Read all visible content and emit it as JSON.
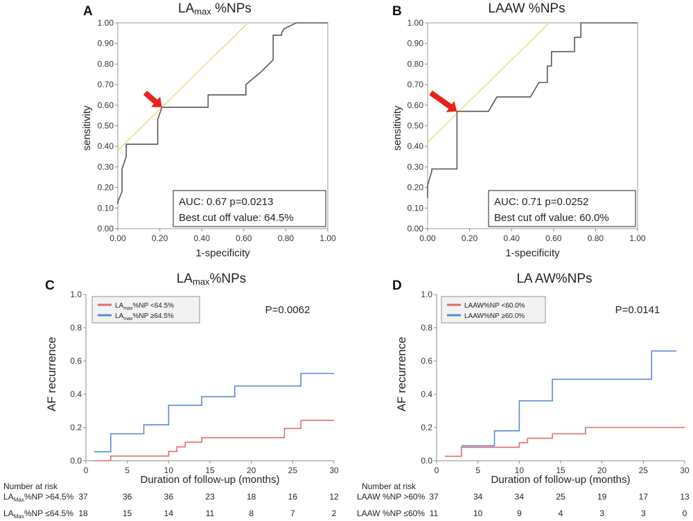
{
  "chart_data": [
    {
      "panel": "A",
      "type": "line",
      "title": "LA",
      "title_sub": "max",
      "title_rest": " %NPs",
      "xlabel": "1-specificity",
      "ylabel": "sensitivity",
      "xlim": [
        0,
        1
      ],
      "ylim": [
        0,
        1
      ],
      "xticks": [
        "0.00",
        "0.20",
        "0.40",
        "0.60",
        "0.80",
        "1.00"
      ],
      "yticks": [
        "0.00",
        "0.10",
        "0.20",
        "0.30",
        "0.40",
        "0.50",
        "0.60",
        "0.70",
        "0.80",
        "0.90",
        "1.00"
      ],
      "roc_curve": {
        "x": [
          0,
          0,
          0.02,
          0.02,
          0.04,
          0.04,
          0.19,
          0.19,
          0.21,
          0.21,
          0.43,
          0.43,
          0.61,
          0.61,
          0.68,
          0.68,
          0.74,
          0.74,
          0.78,
          0.78,
          0.79,
          0.79,
          0.85,
          0.85,
          1.0
        ],
        "y": [
          0.12,
          0.13,
          0.18,
          0.29,
          0.35,
          0.41,
          0.41,
          0.53,
          0.59,
          0.59,
          0.59,
          0.65,
          0.65,
          0.7,
          0.76,
          0.76,
          0.82,
          0.94,
          0.94,
          0.95,
          0.97,
          0.97,
          1.0,
          1.0,
          1.0
        ]
      },
      "reference_line": {
        "x": [
          0,
          0.62
        ],
        "y": [
          0.38,
          1.0
        ]
      },
      "cut_off_point": {
        "x": 0.21,
        "y": 0.59
      },
      "annotation": {
        "auc_text": "AUC: 0.67  p=0.0213",
        "cutoff_text": "Best cut off value:  64.5%"
      }
    },
    {
      "panel": "B",
      "type": "line",
      "title": "LAAW %NPs",
      "title_sub": "",
      "title_rest": "",
      "xlabel": "1-specificity",
      "ylabel": "sensitivity",
      "xlim": [
        0,
        1
      ],
      "ylim": [
        0,
        1
      ],
      "xticks": [
        "0.00",
        "0.20",
        "0.40",
        "0.60",
        "0.80",
        "1.00"
      ],
      "yticks": [
        "0.00",
        "0.10",
        "0.20",
        "0.30",
        "0.40",
        "0.50",
        "0.60",
        "0.70",
        "0.80",
        "0.90",
        "1.00"
      ],
      "roc_curve": {
        "x": [
          0,
          0,
          0.02,
          0.02,
          0.14,
          0.14,
          0.29,
          0.33,
          0.49,
          0.53,
          0.57,
          0.57,
          0.59,
          0.59,
          0.61,
          0.61,
          0.7,
          0.7,
          0.73,
          0.73,
          1.0
        ],
        "y": [
          0.15,
          0.21,
          0.28,
          0.29,
          0.29,
          0.57,
          0.57,
          0.64,
          0.64,
          0.71,
          0.71,
          0.79,
          0.79,
          0.86,
          0.86,
          0.86,
          0.86,
          0.93,
          0.93,
          1.0,
          1.0
        ]
      },
      "reference_line": {
        "x": [
          0,
          0.58
        ],
        "y": [
          0.42,
          1.0
        ]
      },
      "cut_off_point": {
        "x": 0.14,
        "y": 0.57
      },
      "annotation": {
        "auc_text": "AUC: 0.71  p=0.0252",
        "cutoff_text": "Best cut off value:  60.0%"
      }
    },
    {
      "panel": "C",
      "type": "line",
      "title": "LA",
      "title_sub": "max",
      "title_rest": "%NPs",
      "xlabel": "Duration of follow-up  (months)",
      "ylabel": "AF recurrence",
      "xlim": [
        0,
        30
      ],
      "ylim": [
        0,
        1
      ],
      "xticks": [
        "0",
        "5",
        "10",
        "15",
        "20",
        "25",
        "30"
      ],
      "yticks": [
        "0.0",
        "0.2",
        "0.4",
        "0.6",
        "0.8",
        "1.0"
      ],
      "p_value": "P=0.0062",
      "series": [
        {
          "name": "LAmax%NP <64.5%",
          "legend_pre": "LA",
          "legend_sub": "max",
          "legend_post": "%NP <64.5%",
          "color": "#e06b6b",
          "x": [
            1,
            3,
            10,
            11,
            12,
            14,
            24,
            26,
            30
          ],
          "y": [
            0,
            0.028,
            0.056,
            0.083,
            0.111,
            0.139,
            0.194,
            0.243,
            0.243
          ]
        },
        {
          "name": "LAmax%NP ≥64.5%",
          "legend_pre": "LA",
          "legend_sub": "max",
          "legend_post": "%NP ≥64.5%",
          "color": "#5b86d4",
          "x": [
            1,
            3,
            7,
            10,
            14,
            18,
            26,
            30
          ],
          "y": [
            0.054,
            0.162,
            0.216,
            0.333,
            0.385,
            0.449,
            0.525,
            0.525
          ]
        }
      ],
      "risk_table": {
        "header": "Number at risk",
        "rows": [
          {
            "label_pre": "LA",
            "label_sub": "Max",
            "label_post": "%NP >64.5%",
            "values": [
              "37",
              "36",
              "36",
              "23",
              "18",
              "16",
              "12"
            ]
          },
          {
            "label_pre": "LA",
            "label_sub": "Max",
            "label_post": "%NP ≤64.5%",
            "values": [
              "18",
              "15",
              "14",
              "11",
              "8",
              "7",
              "2"
            ]
          }
        ]
      }
    },
    {
      "panel": "D",
      "type": "line",
      "title": "LA AW%NPs",
      "title_sub": "",
      "title_rest": "",
      "xlabel": "Duration of follow-up  (months)",
      "ylabel": "AF recurrence",
      "xlim": [
        0,
        30
      ],
      "ylim": [
        0,
        1
      ],
      "xticks": [
        "0",
        "5",
        "10",
        "15",
        "20",
        "25",
        "30"
      ],
      "yticks": [
        "0.0",
        "0.2",
        "0.4",
        "0.6",
        "0.8",
        "1.0"
      ],
      "p_value": "P=0.0141",
      "series": [
        {
          "name": "LAAW%NP <60.0%",
          "legend_pre": "LAAW%NP <60.0%",
          "legend_sub": "",
          "legend_post": "",
          "color": "#e06b6b",
          "x": [
            1,
            3,
            10,
            11,
            14,
            18,
            30
          ],
          "y": [
            0.027,
            0.081,
            0.108,
            0.135,
            0.162,
            0.2,
            0.2
          ]
        },
        {
          "name": "LAAW%NP ≥60.0%",
          "legend_pre": "LAAW%NP ≥60.0%",
          "legend_sub": "",
          "legend_post": "",
          "color": "#5b86d4",
          "x": [
            3,
            7,
            10,
            14,
            26,
            29
          ],
          "y": [
            0.09,
            0.18,
            0.36,
            0.49,
            0.66,
            0.66
          ]
        }
      ],
      "risk_table": {
        "header": "Number at risk",
        "rows": [
          {
            "label_pre": "LAAW %NP >60%",
            "label_sub": "",
            "label_post": "",
            "values": [
              "37",
              "34",
              "34",
              "25",
              "19",
              "17",
              "13"
            ]
          },
          {
            "label_pre": "LAAW %NP ≤60%",
            "label_sub": "",
            "label_post": "",
            "values": [
              "11",
              "10",
              "9",
              "4",
              "3",
              "3",
              "0"
            ]
          }
        ]
      }
    }
  ]
}
